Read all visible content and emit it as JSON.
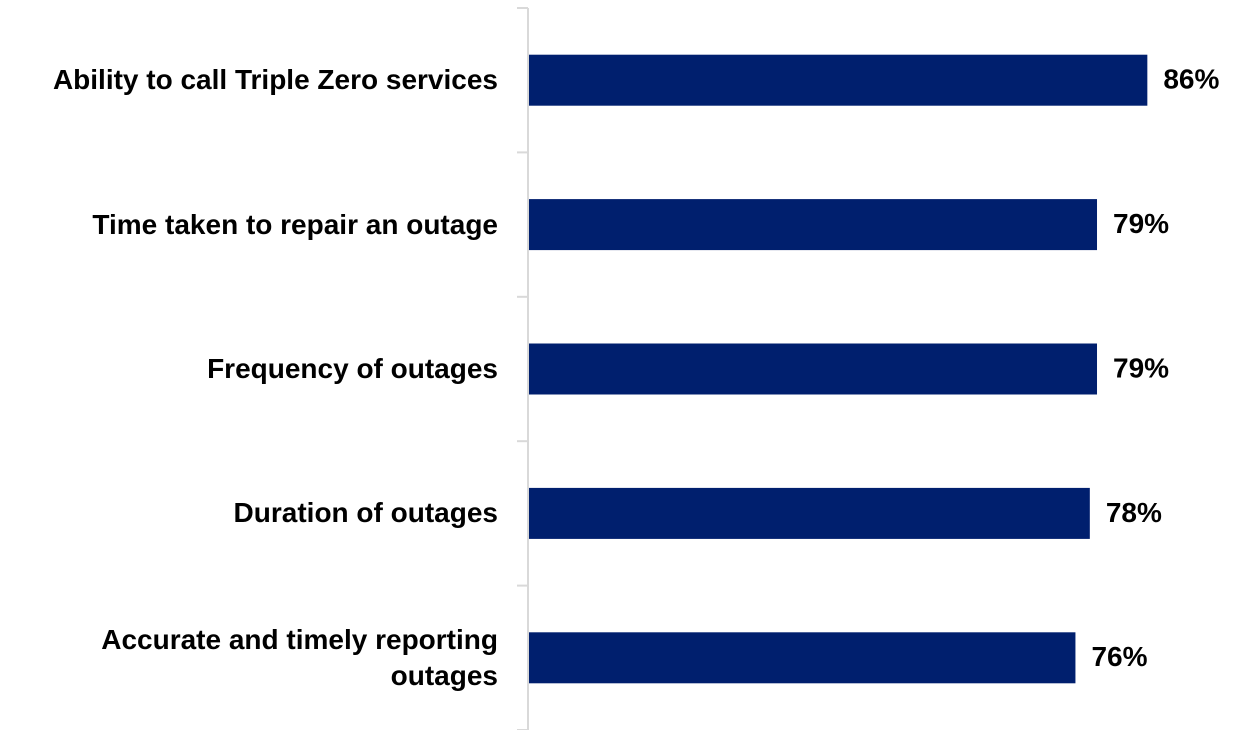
{
  "chart_data": {
    "type": "bar",
    "orientation": "horizontal",
    "categories": [
      "Ability to call Triple Zero services",
      "Time taken to repair an outage",
      "Frequency of outages",
      "Duration of outages",
      "Accurate and timely reporting outages"
    ],
    "values": [
      86,
      79,
      79,
      78,
      76
    ],
    "value_labels": [
      "86%",
      "79%",
      "79%",
      "78%",
      "76%"
    ],
    "color": "#001f6e"
  }
}
